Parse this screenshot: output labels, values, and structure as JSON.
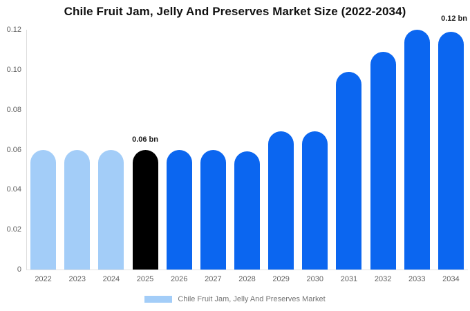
{
  "page": {
    "background_color": "#ffffff"
  },
  "chart_data": {
    "type": "bar",
    "title": "Chile Fruit Jam, Jelly And Preserves Market Size (2022-2034)",
    "xlabel": "",
    "ylabel": "",
    "unit": "bn",
    "categories": [
      "2022",
      "2023",
      "2024",
      "2025",
      "2026",
      "2027",
      "2028",
      "2029",
      "2030",
      "2031",
      "2032",
      "2033",
      "2034"
    ],
    "values": [
      0.06,
      0.06,
      0.06,
      0.06,
      0.06,
      0.06,
      0.059,
      0.069,
      0.069,
      0.099,
      0.109,
      0.12,
      0.119
    ],
    "bar_colors": [
      "#a3cdf8",
      "#a3cdf8",
      "#a3cdf8",
      "#000000",
      "#0b66f0",
      "#0b66f0",
      "#0b66f0",
      "#0b66f0",
      "#0b66f0",
      "#0b66f0",
      "#0b66f0",
      "#0b66f0",
      "#0b66f0"
    ],
    "ylim": [
      0,
      0.12
    ],
    "y_tick_labels": [
      "0",
      "0.02",
      "0.04",
      "0.06",
      "0.08",
      "0.10",
      "0.12"
    ],
    "y_tick_values": [
      0,
      0.02,
      0.04,
      0.06,
      0.08,
      0.1,
      0.12
    ],
    "grid": false,
    "annotations": [
      {
        "text": "0.06 bn",
        "anchor_category": "2025"
      },
      {
        "text": "0.12 bn",
        "anchor": "top-right"
      }
    ],
    "legend": {
      "label": "Chile Fruit Jam, Jelly And Preserves Market",
      "swatch_color": "#a3cdf8",
      "position": "bottom-center"
    },
    "colors": {
      "historical_bar": "#a3cdf8",
      "base_year_bar": "#000000",
      "forecast_bar": "#0b66f0",
      "axis_line": "#dcdcdc",
      "tick_text": "#616161",
      "legend_text": "#757575",
      "title_text": "#111111"
    }
  }
}
